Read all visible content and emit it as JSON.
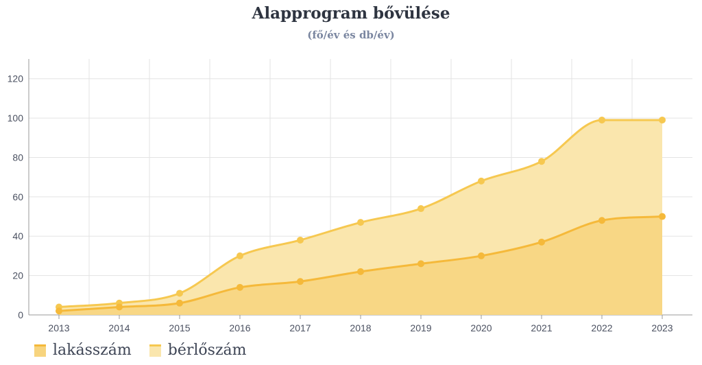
{
  "chart_data": {
    "type": "area",
    "title": "Alapprogram bővülése",
    "subtitle": "(fő/év és db/év)",
    "categories": [
      "2013",
      "2014",
      "2015",
      "2016",
      "2017",
      "2018",
      "2019",
      "2020",
      "2021",
      "2022",
      "2023"
    ],
    "yticks": [
      "0",
      "20",
      "40",
      "60",
      "80",
      "100",
      "120"
    ],
    "ylim": [
      0,
      130
    ],
    "grid": true,
    "legend_position": "bottom-left",
    "series": [
      {
        "name": "lakásszám",
        "values": [
          2,
          4,
          6,
          14,
          17,
          22,
          26,
          30,
          37,
          48,
          50
        ],
        "color": "#f5b93a",
        "fill": "#f7d47e"
      },
      {
        "name": "bérlőszám",
        "values": [
          4,
          6,
          11,
          30,
          38,
          47,
          54,
          68,
          78,
          99,
          99
        ],
        "color": "#f6c850",
        "fill": "#fae6ad"
      }
    ]
  }
}
